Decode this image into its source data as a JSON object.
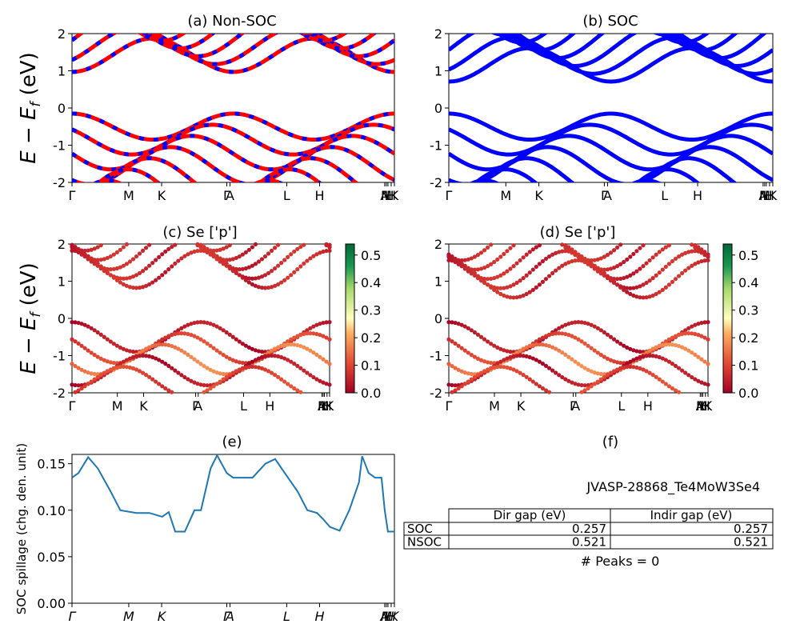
{
  "figure": {
    "title_a": "(a) Non-SOC",
    "title_b": "(b) SOC",
    "title_c": "(c)  Se ['p']",
    "title_d": "(d) Se ['p']",
    "title_e": "(e)",
    "title_f": "(f)",
    "ylabel_energy": "E − E",
    "ylabel_energy_sub": "f",
    "ylabel_energy_unit": " (eV)",
    "ylabel_spillage": "SOC spillage (chg. den. unit)"
  },
  "colors": {
    "nonsoc_up": "#ff0000",
    "nonsoc_dn": "#0000ff",
    "soc": "#0000ff",
    "spillage": "#1f77b4"
  },
  "kpath": {
    "labels": [
      "Γ",
      "M",
      "K",
      "Γ",
      "A",
      "L",
      "H",
      "A",
      "M",
      "L",
      "H",
      "K"
    ],
    "positions": [
      0,
      0.176,
      0.278,
      0.48,
      0.49,
      0.666,
      0.768,
      0.97,
      0.975,
      0.98,
      0.99,
      1.0
    ]
  },
  "kpath_italic_labels": [
    "Γ",
    "M",
    "K",
    "Γ",
    "A",
    "L",
    "H",
    "A",
    "M",
    "L",
    "H",
    "K"
  ],
  "colorbar_ticks": [
    "0.0",
    "0.1",
    "0.2",
    "0.3",
    "0.4",
    "0.5"
  ],
  "info": {
    "material": "JVASP-28868_Te4MoW3Se4",
    "table": {
      "columns": [
        "",
        "Dir gap (eV)",
        "Indir gap (eV)"
      ],
      "rows": [
        {
          "label": "SOC",
          "dir": "0.257",
          "indir": "0.257"
        },
        {
          "label": "NSOC",
          "dir": "0.521",
          "indir": "0.521"
        }
      ]
    },
    "peaks": "# Peaks = 0"
  },
  "chart_data": [
    {
      "type": "line",
      "title": "(a) Non-SOC",
      "ylabel": "E − E_f (eV)",
      "ylim": [
        -2,
        2
      ],
      "yticks": [
        -2,
        -1,
        0,
        1,
        2
      ],
      "grid": false,
      "series_summary": {
        "valence_max": 0.0,
        "conduction_min": 0.52
      }
    },
    {
      "type": "line",
      "title": "(b) SOC",
      "ylim": [
        -2,
        2
      ],
      "yticks": [
        -2,
        -1,
        0,
        1,
        2
      ],
      "grid": false,
      "series_summary": {
        "valence_max": 0.0,
        "conduction_min": 0.26
      }
    },
    {
      "type": "scatter",
      "title": "(c)  Se ['p']",
      "ylabel": "E − E_f (eV)",
      "ylim": [
        -2,
        2
      ],
      "colorbar_range": [
        0.0,
        0.54
      ],
      "grid": false
    },
    {
      "type": "scatter",
      "title": "(d) Se ['p']",
      "ylim": [
        -2,
        2
      ],
      "colorbar_range": [
        0.0,
        0.53
      ],
      "grid": false
    },
    {
      "type": "line",
      "title": "(e)",
      "ylabel": "SOC spillage (chg. den. unit)",
      "ylim": [
        0.0,
        0.16
      ],
      "yticks": [
        0.0,
        0.05,
        0.1,
        0.15
      ],
      "grid": false,
      "x": [
        0.0,
        0.02,
        0.05,
        0.08,
        0.12,
        0.15,
        0.2,
        0.24,
        0.28,
        0.3,
        0.32,
        0.35,
        0.38,
        0.4,
        0.43,
        0.45,
        0.48,
        0.5,
        0.53,
        0.56,
        0.6,
        0.63,
        0.66,
        0.7,
        0.73,
        0.76,
        0.78,
        0.8,
        0.83,
        0.86,
        0.89,
        0.9,
        0.92,
        0.94,
        0.96,
        0.97,
        0.98,
        1.0
      ],
      "y": [
        0.135,
        0.14,
        0.157,
        0.145,
        0.12,
        0.1,
        0.097,
        0.097,
        0.093,
        0.098,
        0.077,
        0.077,
        0.1,
        0.1,
        0.145,
        0.159,
        0.14,
        0.135,
        0.135,
        0.135,
        0.15,
        0.155,
        0.14,
        0.12,
        0.1,
        0.097,
        0.09,
        0.082,
        0.078,
        0.1,
        0.13,
        0.158,
        0.14,
        0.135,
        0.135,
        0.1,
        0.077,
        0.077
      ]
    }
  ]
}
